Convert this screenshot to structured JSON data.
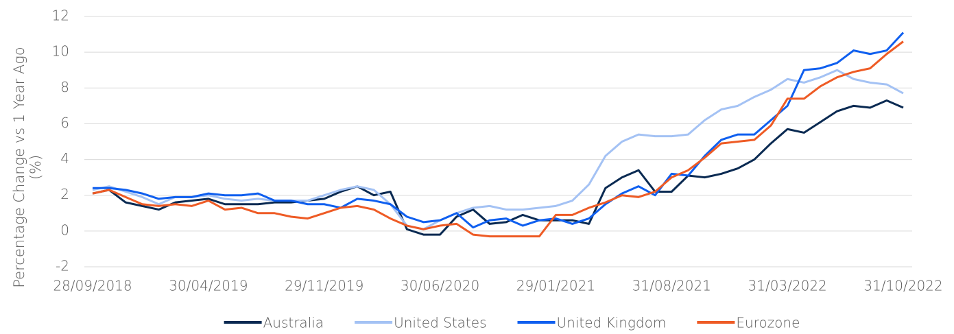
{
  "chart_data": {
    "type": "line",
    "y_label": "Percentage Change vs 1 Year Ago (%)",
    "categories": [
      "28/09/2018",
      null,
      null,
      null,
      null,
      null,
      null,
      "30/04/2019",
      null,
      null,
      null,
      null,
      null,
      null,
      "29/11/2019",
      null,
      null,
      null,
      null,
      null,
      null,
      "30/06/2020",
      null,
      null,
      null,
      null,
      null,
      null,
      "29/01/2021",
      null,
      null,
      null,
      null,
      null,
      null,
      "31/08/2021",
      null,
      null,
      null,
      null,
      null,
      null,
      "31/03/2022",
      null,
      null,
      null,
      null,
      null,
      null,
      "31/10/2022"
    ],
    "ylim": [
      -2,
      12
    ],
    "yticks": [
      -2,
      0,
      2,
      4,
      6,
      8,
      10,
      12
    ],
    "grid": true,
    "legend": "bottom",
    "series": [
      {
        "name": "Australia",
        "color": "#0a2a52",
        "values": [
          2.1,
          2.3,
          1.6,
          1.4,
          1.2,
          1.6,
          1.7,
          1.8,
          1.5,
          1.5,
          1.5,
          1.6,
          1.6,
          1.7,
          1.8,
          2.2,
          2.5,
          2.0,
          2.2,
          0.1,
          -0.2,
          -0.2,
          0.8,
          1.2,
          0.4,
          0.5,
          0.9,
          0.6,
          0.6,
          0.6,
          0.4,
          2.4,
          3.0,
          3.4,
          2.2,
          2.2,
          3.1,
          3.0,
          3.2,
          3.5,
          4.0,
          4.9,
          5.7,
          5.5,
          6.1,
          6.7,
          7.0,
          6.9,
          7.3,
          6.9
        ]
      },
      {
        "name": "United States",
        "color": "#a4c2f4",
        "values": [
          2.3,
          2.5,
          2.2,
          1.9,
          1.5,
          1.9,
          1.9,
          2.0,
          1.8,
          1.7,
          1.8,
          1.7,
          1.7,
          1.7,
          2.0,
          2.3,
          2.5,
          2.3,
          1.5,
          0.3,
          0.1,
          0.6,
          1.0,
          1.3,
          1.4,
          1.2,
          1.2,
          1.3,
          1.4,
          1.7,
          2.6,
          4.2,
          5.0,
          5.4,
          5.3,
          5.3,
          5.4,
          6.2,
          6.8,
          7.0,
          7.5,
          7.9,
          8.5,
          8.3,
          8.6,
          9.0,
          8.5,
          8.3,
          8.2,
          7.7
        ]
      },
      {
        "name": "United Kingdom",
        "color": "#0f5fef",
        "values": [
          2.4,
          2.4,
          2.3,
          2.1,
          1.8,
          1.9,
          1.9,
          2.1,
          2.0,
          2.0,
          2.1,
          1.7,
          1.7,
          1.5,
          1.5,
          1.3,
          1.8,
          1.7,
          1.5,
          0.8,
          0.5,
          0.6,
          1.0,
          0.2,
          0.6,
          0.7,
          0.3,
          0.6,
          0.7,
          0.4,
          0.7,
          1.5,
          2.1,
          2.5,
          2.0,
          3.2,
          3.1,
          4.2,
          5.1,
          5.4,
          5.4,
          6.2,
          7.0,
          9.0,
          9.1,
          9.4,
          10.1,
          9.9,
          10.1,
          11.1
        ]
      },
      {
        "name": "Eurozone",
        "color": "#ee5b25",
        "values": [
          2.1,
          2.3,
          1.9,
          1.5,
          1.4,
          1.5,
          1.4,
          1.7,
          1.2,
          1.3,
          1.0,
          1.0,
          0.8,
          0.7,
          1.0,
          1.3,
          1.4,
          1.2,
          0.7,
          0.3,
          0.1,
          0.3,
          0.4,
          -0.2,
          -0.3,
          -0.3,
          -0.3,
          -0.3,
          0.9,
          0.9,
          1.3,
          1.6,
          2.0,
          1.9,
          2.2,
          3.0,
          3.4,
          4.1,
          4.9,
          5.0,
          5.1,
          5.9,
          7.4,
          7.4,
          8.1,
          8.6,
          8.9,
          9.1,
          9.9,
          10.6
        ]
      }
    ]
  }
}
